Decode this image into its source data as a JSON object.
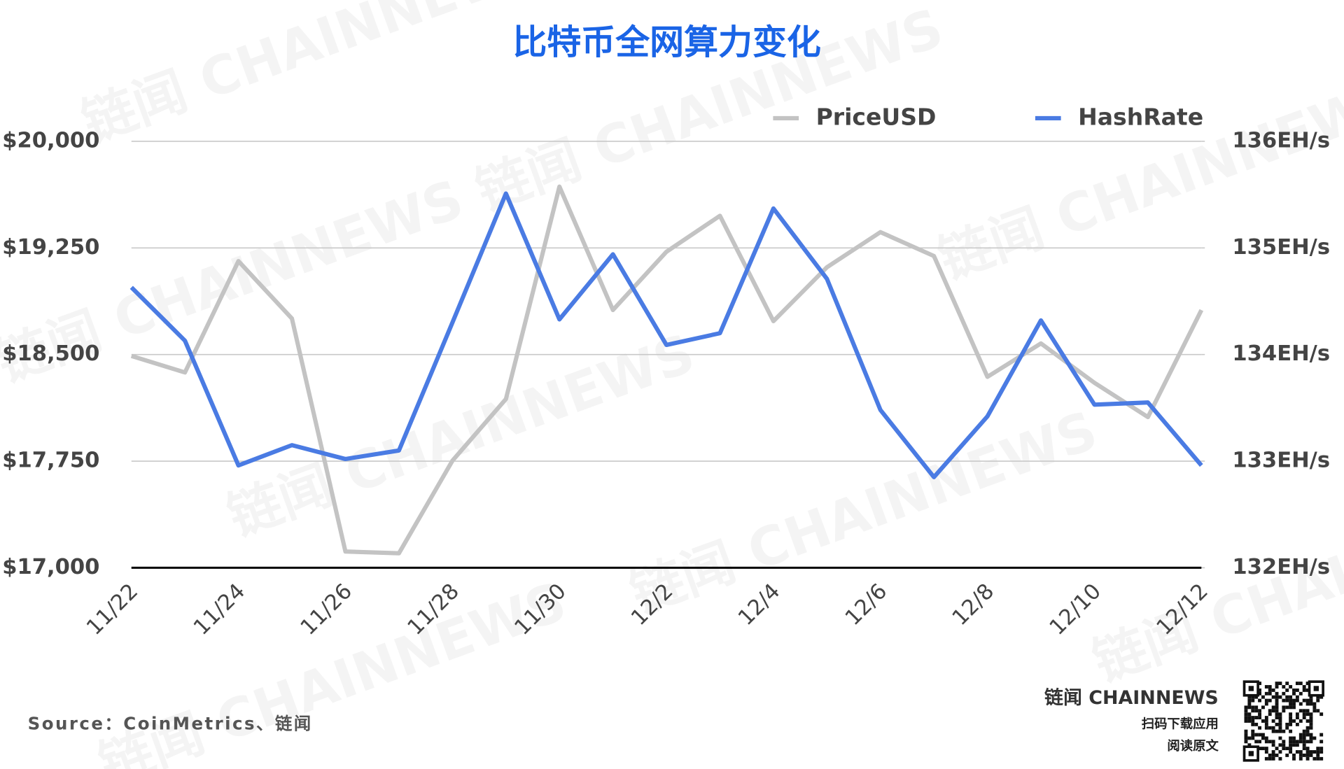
{
  "chart_data": {
    "type": "line",
    "title": "比特币全网算力变化",
    "categories": [
      "11/22",
      null,
      "11/24",
      null,
      "11/26",
      null,
      "11/28",
      null,
      "11/30",
      null,
      "12/2",
      null,
      "12/4",
      null,
      "12/6",
      null,
      "12/8",
      null,
      "12/10",
      null,
      "12/12"
    ],
    "series": [
      {
        "name": "PriceUSD",
        "color": "#c3c3c3",
        "values": [
          18490,
          18374,
          19157,
          18753,
          17114,
          17102,
          17753,
          18187,
          19681,
          18813,
          19223,
          19476,
          18735,
          19114,
          19361,
          19193,
          18343,
          18578,
          18301,
          18060,
          18813
        ]
      },
      {
        "name": "HashRate",
        "color": "#4a7be3",
        "axis": "y2",
        "values": [
          134.63,
          134.13,
          132.96,
          133.15,
          133.02,
          133.1,
          134.3,
          135.51,
          134.33,
          134.94,
          134.09,
          134.2,
          135.37,
          134.71,
          133.48,
          132.85,
          133.42,
          134.32,
          133.53,
          133.55,
          132.96
        ]
      }
    ],
    "ylim": [
      17000,
      20000
    ],
    "yticks": [
      {
        "value": 17000,
        "label": "$17,000"
      },
      {
        "value": 17750,
        "label": "$17,750"
      },
      {
        "value": 18500,
        "label": "$18,500"
      },
      {
        "value": 19250,
        "label": "$19,250"
      },
      {
        "value": 20000,
        "label": "$20,000"
      }
    ],
    "y2lim": [
      132,
      136
    ],
    "y2ticks": [
      {
        "value": 132,
        "label": "132EH/s"
      },
      {
        "value": 133,
        "label": "133EH/s"
      },
      {
        "value": 134,
        "label": "134EH/s"
      },
      {
        "value": 135,
        "label": "135EH/s"
      },
      {
        "value": 136,
        "label": "136EH/s"
      }
    ],
    "grid": true,
    "legend": "top-right"
  },
  "footer": {
    "source": "Source：CoinMetrics、链闻",
    "brand": "链闻 CHAINNEWS",
    "download": "扫码下载应用",
    "read": "阅读原文"
  },
  "watermark": "链闻 CHAINNEWS"
}
